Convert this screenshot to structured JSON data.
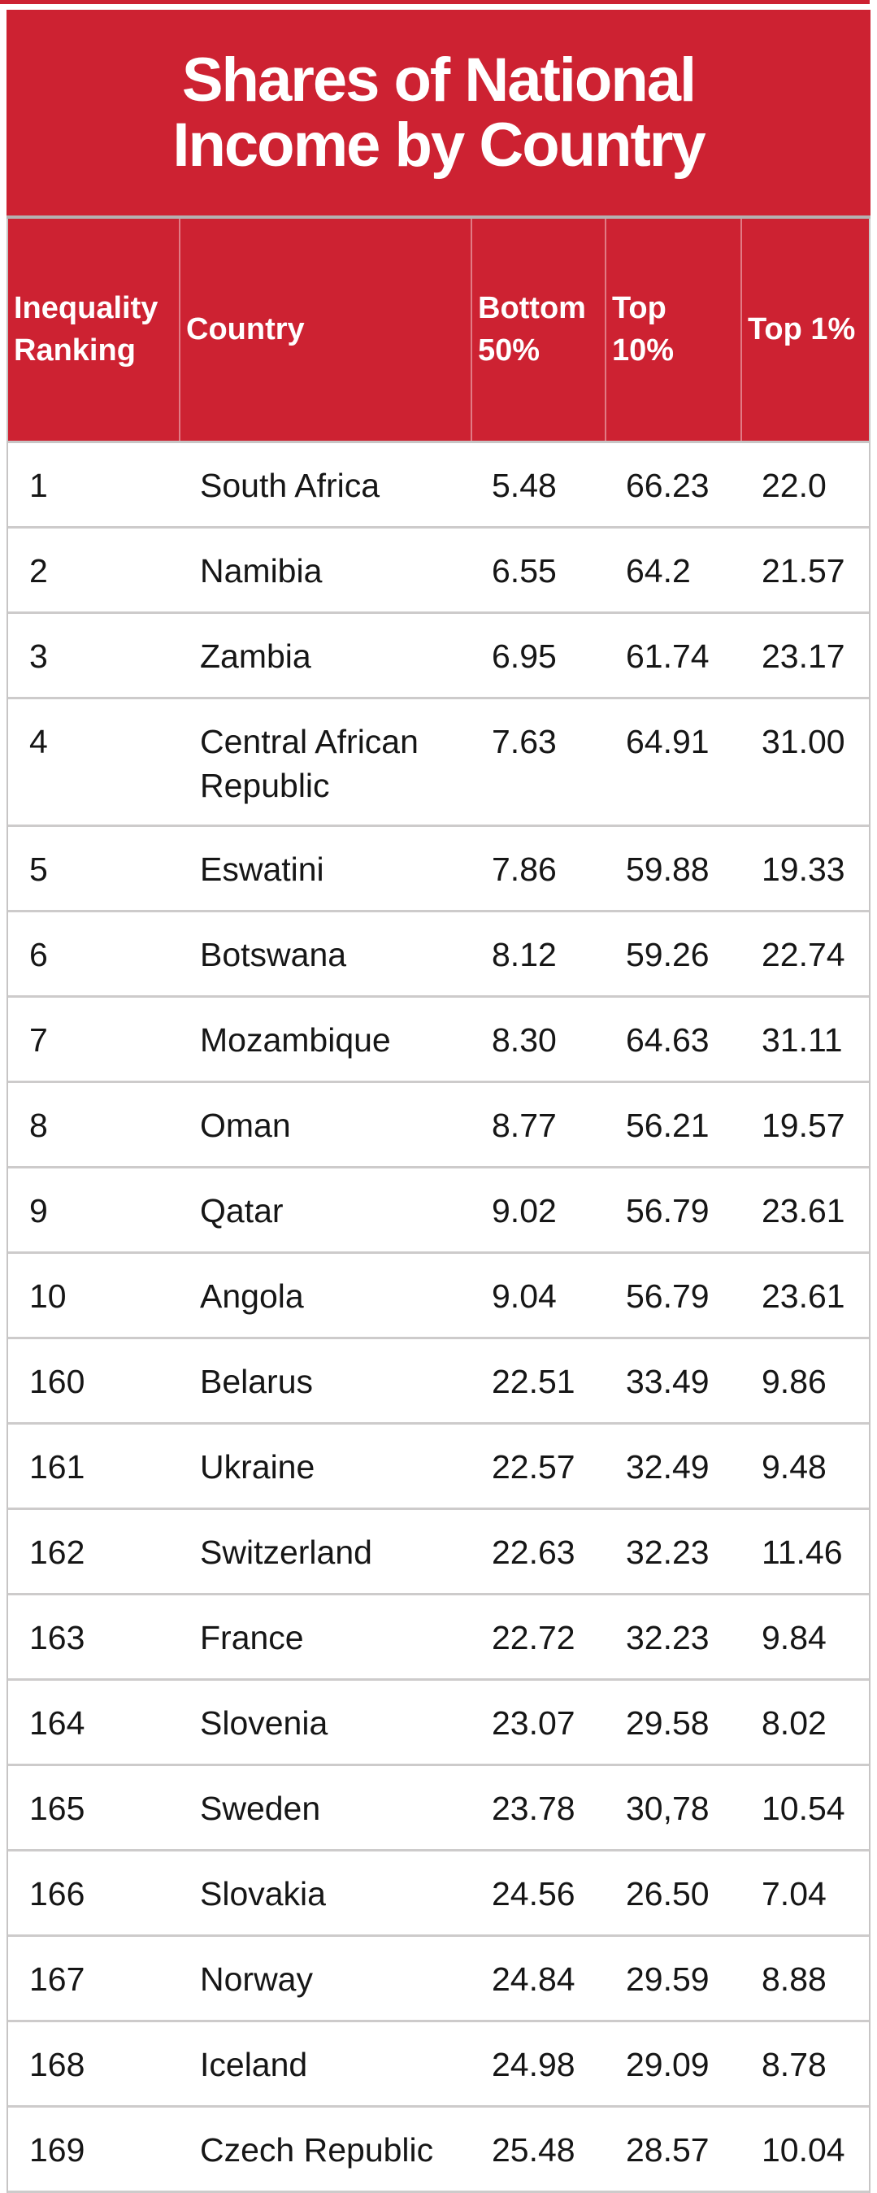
{
  "title": {
    "line1": "Shares of National",
    "line2": "Income by Country"
  },
  "chart_data": {
    "type": "table",
    "title": "Shares of National Income by Country",
    "columns": [
      "Inequality Ranking",
      "Country",
      "Bottom 50%",
      "Top 10%",
      "Top 1%"
    ],
    "rows": [
      [
        "1",
        "South Africa",
        "5.48",
        "66.23",
        "22.0"
      ],
      [
        "2",
        "Namibia",
        "6.55",
        "64.2",
        "21.57"
      ],
      [
        "3",
        "Zambia",
        "6.95",
        "61.74",
        "23.17"
      ],
      [
        "4",
        "Central African Republic",
        "7.63",
        "64.91",
        "31.00"
      ],
      [
        "5",
        "Eswatini",
        "7.86",
        "59.88",
        "19.33"
      ],
      [
        "6",
        "Botswana",
        "8.12",
        "59.26",
        "22.74"
      ],
      [
        "7",
        "Mozambique",
        "8.30",
        "64.63",
        "31.11"
      ],
      [
        "8",
        "Oman",
        "8.77",
        "56.21",
        "19.57"
      ],
      [
        "9",
        "Qatar",
        "9.02",
        "56.79",
        "23.61"
      ],
      [
        "10",
        "Angola",
        "9.04",
        "56.79",
        "23.61"
      ],
      [
        "160",
        "Belarus",
        "22.51",
        "33.49",
        "9.86"
      ],
      [
        "161",
        "Ukraine",
        "22.57",
        "32.49",
        "9.48"
      ],
      [
        "162",
        "Switzerland",
        "22.63",
        "32.23",
        "11.46"
      ],
      [
        "163",
        "France",
        "22.72",
        "32.23",
        "9.84"
      ],
      [
        "164",
        "Slovenia",
        "23.07",
        "29.58",
        "8.02"
      ],
      [
        "165",
        "Sweden",
        "23.78",
        "30,78",
        "10.54"
      ],
      [
        "166",
        "Slovakia",
        "24.56",
        "26.50",
        "7.04"
      ],
      [
        "167",
        "Norway",
        "24.84",
        "29.59",
        "8.88"
      ],
      [
        "168",
        "Iceland",
        "24.98",
        "29.09",
        "8.78"
      ],
      [
        "169",
        "Czech Republic",
        "25.48",
        "28.57",
        "10.04"
      ]
    ]
  },
  "colors": {
    "accent_red": "#cd2232",
    "divider_gray": "#c7c5c5",
    "row_divider_gray": "#cdcbcb",
    "header_seam": "rgba(255,255,255,0.4)",
    "text_dark": "#161616",
    "header_text": "#ffffff"
  }
}
